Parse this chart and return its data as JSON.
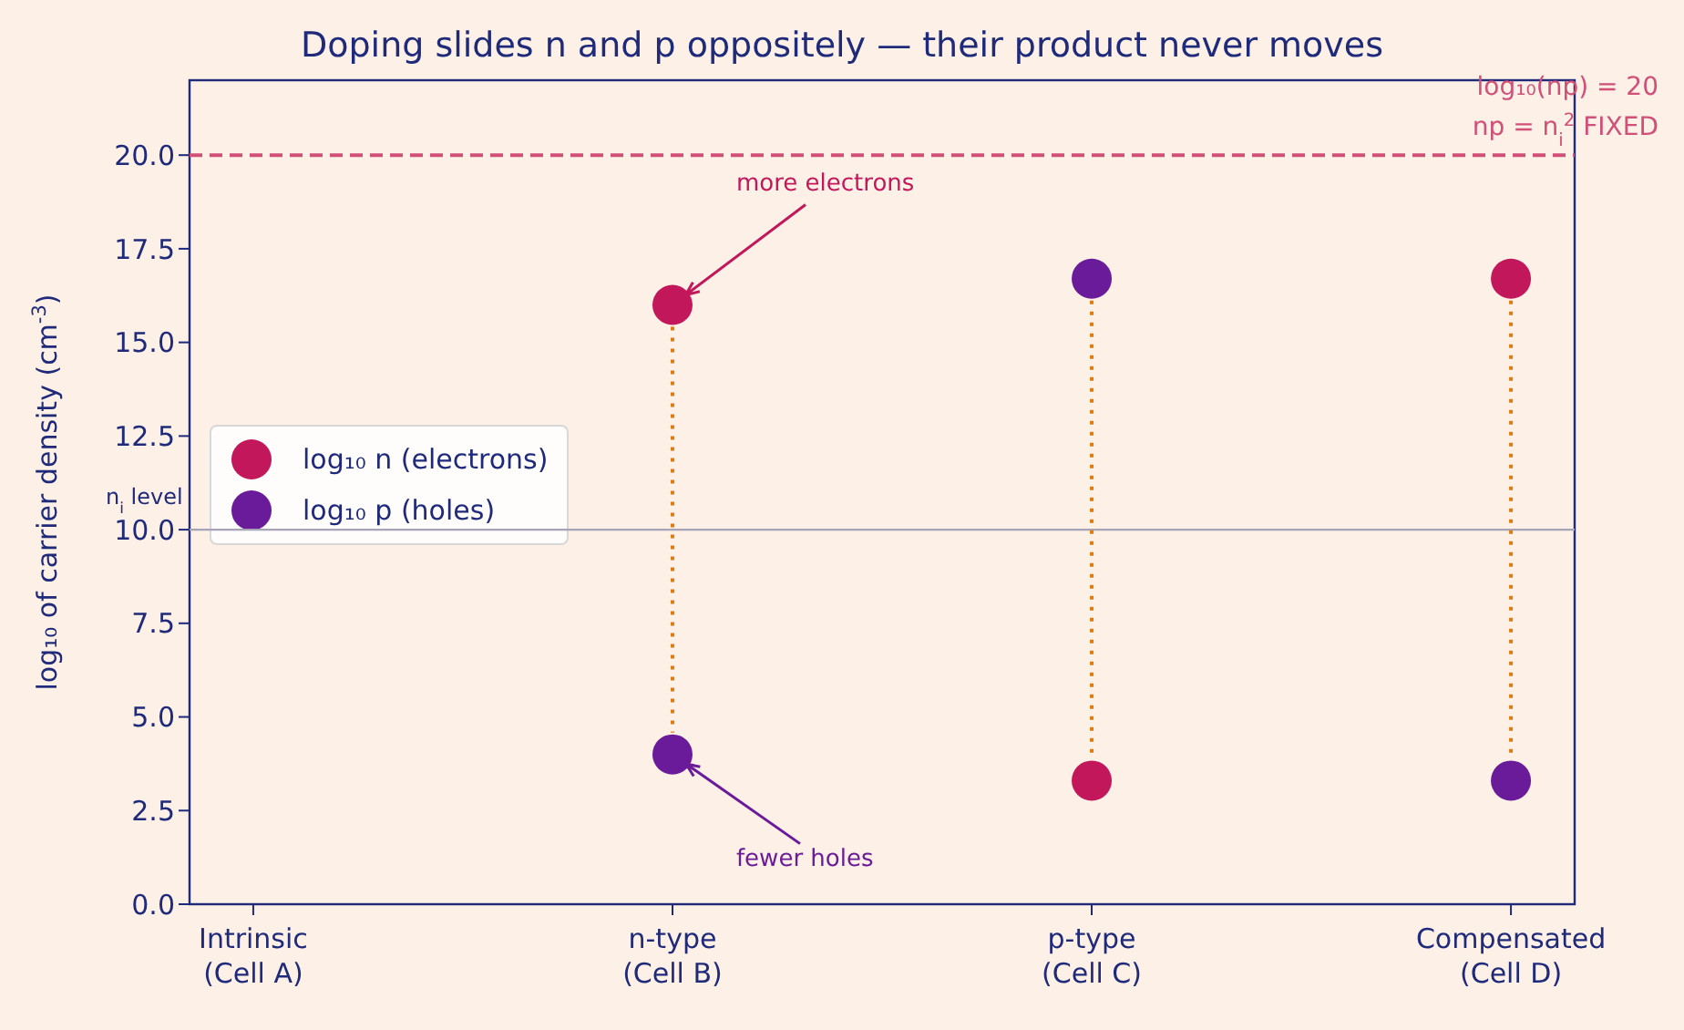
{
  "chart_data": {
    "type": "scatter",
    "title": "Doping slides n and p oppositely — their product never moves",
    "ylabel": "log₁₀ of carrier density  (cm$^{-3}$)",
    "categories": [
      "Intrinsic\n(Cell A)",
      "n-type\n(Cell B)",
      "p-type\n(Cell C)",
      "Compensated\n(Cell D)"
    ],
    "series": [
      {
        "name": "log₁₀ n (electrons)",
        "color": "#c2185b",
        "values": [
          null,
          16.0,
          3.3,
          16.7
        ]
      },
      {
        "name": "log₁₀ p (holes)",
        "color": "#6a1b9a",
        "values": [
          null,
          4.0,
          16.7,
          3.3
        ]
      }
    ],
    "ylim": [
      0,
      22
    ],
    "yticks": [
      {
        "value": 0,
        "label": "0.0"
      },
      {
        "value": 2.5,
        "label": "2.5"
      },
      {
        "value": 5,
        "label": "5.0"
      },
      {
        "value": 7.5,
        "label": "7.5"
      },
      {
        "value": 10,
        "label": "10.0"
      },
      {
        "value": 12.5,
        "label": "12.5"
      },
      {
        "value": 15,
        "label": "15.0"
      },
      {
        "value": 17.5,
        "label": "17.5"
      },
      {
        "value": 20,
        "label": "20.0"
      }
    ],
    "ref_lines": [
      {
        "axis": "y",
        "value": 20,
        "label": "log₁₀(np) = 20\nnp = n$_{i}$$^{2}$ FIXED",
        "color": "#d05078",
        "line_style": "dashed"
      },
      {
        "axis": "y",
        "value": 10,
        "label": "n$_{i}$ level",
        "color": "#a8a4b8",
        "line_style": "solid"
      }
    ],
    "annotations": [
      {
        "text": "more electrons",
        "x": "n-type\n(Cell B)",
        "y": 16.0
      },
      {
        "text": "fewer holes",
        "x": "n-type\n(Cell B)",
        "y": 4.0
      }
    ],
    "marker": "circle",
    "legend": "left",
    "grid": false
  }
}
